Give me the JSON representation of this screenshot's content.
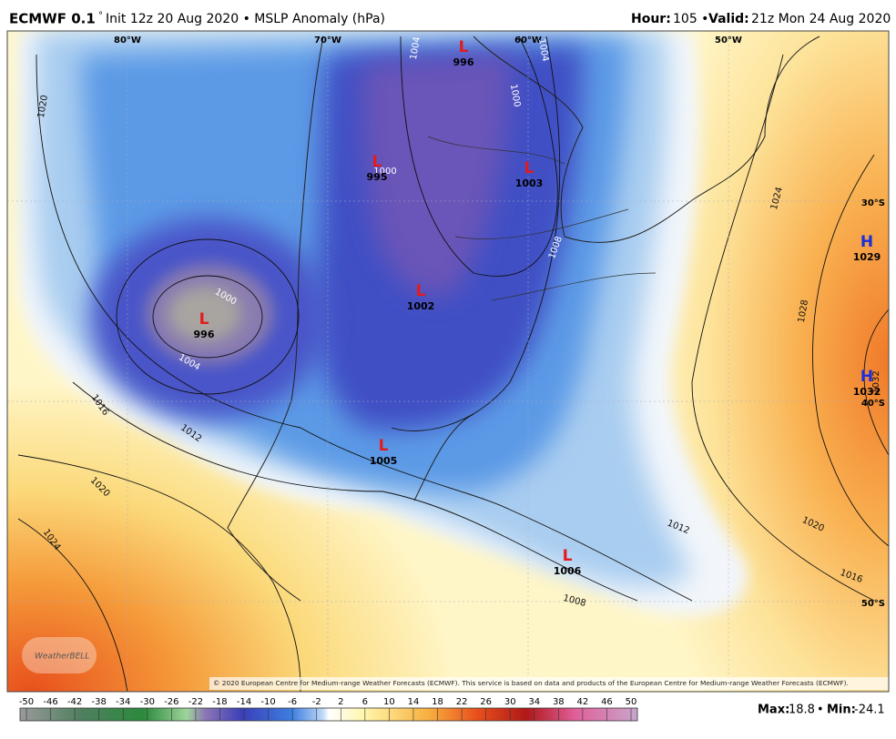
{
  "header": {
    "model": "ECMWF 0.1",
    "degree": "°",
    "init": "Init 12z 20 Aug 2020 • MSLP Anomaly (hPa)",
    "hour_label": "Hour:",
    "hour_value": "105 •",
    "valid_label": "Valid:",
    "valid_value": "21z Mon 24 Aug 2020"
  },
  "map": {
    "longitudes": [
      "80°W",
      "70°W",
      "60°W",
      "50°W"
    ],
    "latitudes": [
      "30°S",
      "40°S",
      "50°S"
    ],
    "centers": [
      {
        "symbol": "L",
        "pressure": "996"
      },
      {
        "symbol": "L",
        "pressure": "995"
      },
      {
        "symbol": "L",
        "pressure": "1003"
      },
      {
        "symbol": "L",
        "pressure": "1002"
      },
      {
        "symbol": "L",
        "pressure": "996"
      },
      {
        "symbol": "L",
        "pressure": "1005"
      },
      {
        "symbol": "L",
        "pressure": "1006"
      },
      {
        "symbol": "H",
        "pressure": "1029"
      },
      {
        "symbol": "H",
        "pressure": "1032"
      }
    ],
    "isobar_labels": [
      "1020",
      "1016",
      "1012",
      "1004",
      "1000",
      "1000",
      "1004",
      "1004",
      "1008",
      "1000",
      "1024",
      "1028",
      "1032",
      "1020",
      "1024",
      "1020",
      "1016",
      "1012",
      "1008"
    ],
    "credit": "WeatherBELL",
    "copyright": "© 2020 European Centre for Medium-range Weather Forecasts (ECMWF). This service is based on data and products of the European Centre for Medium-range Weather Forecasts (ECMWF)."
  },
  "colorbar": {
    "ticks": [
      -50,
      -46,
      -42,
      -38,
      -34,
      -30,
      -26,
      -22,
      -18,
      -14,
      -10,
      -6,
      -2,
      2,
      6,
      10,
      14,
      18,
      22,
      26,
      30,
      34,
      38,
      42,
      46,
      50
    ]
  },
  "stats": {
    "max_label": "Max:",
    "max": "18.8",
    "separator": "•",
    "min_label": "Min:",
    "min": "-24.1"
  }
}
